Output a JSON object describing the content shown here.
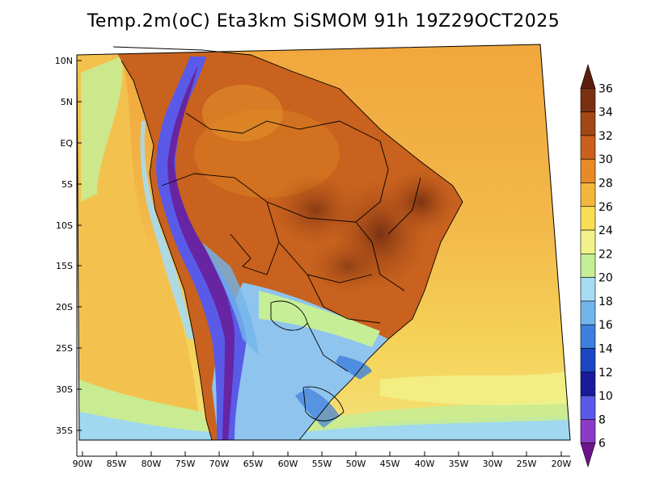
{
  "title": "Temp.2m(oC) Eta3km SiSMOM 91h 19Z29OCT2025",
  "axes": {
    "lat_labels": [
      "10N",
      "5N",
      "EQ",
      "5S",
      "10S",
      "15S",
      "20S",
      "25S",
      "30S",
      "35S"
    ],
    "lon_labels": [
      "90W",
      "85W",
      "80W",
      "75W",
      "70W",
      "65W",
      "60W",
      "55W",
      "50W",
      "45W",
      "40W",
      "35W",
      "30W",
      "25W",
      "20W"
    ]
  },
  "colorbar": {
    "labels": [
      "36",
      "34",
      "32",
      "30",
      "28",
      "26",
      "24",
      "22",
      "20",
      "18",
      "16",
      "14",
      "12",
      "10",
      "8",
      "6"
    ],
    "colors": [
      "#5b1f0f",
      "#7a3112",
      "#a24716",
      "#c9601c",
      "#e98a26",
      "#f4b53c",
      "#f7de55",
      "#f2f28a",
      "#c6ee96",
      "#a6dcf2",
      "#72b5ea",
      "#3d7fdc",
      "#1b47c4",
      "#1a1a9a",
      "#5a5ae8",
      "#8a3cc8",
      "#6c148c"
    ]
  },
  "colors": {
    "ocean_warm": "#f3b44a",
    "ocean_south": "#f6d85a",
    "amazon": "#c8621e",
    "northeast_hot": "#9b4416",
    "andes": "#5a5ae8",
    "south_cool": "#8fc4ee"
  }
}
